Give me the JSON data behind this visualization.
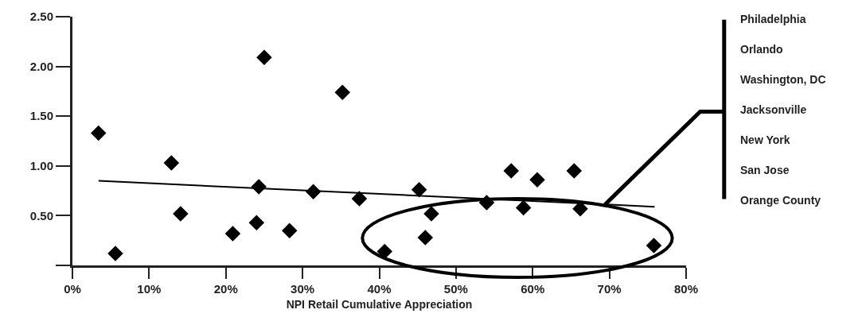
{
  "chart_data": {
    "type": "scatter",
    "xlabel": "NPI Retail Cumulative Appreciation",
    "series": [
      {
        "type": "scatter",
        "color": "#000000",
        "marker": "diamond",
        "x": [
          3.4,
          5.6,
          12.9,
          14.1,
          20.9,
          24.0,
          24.3,
          25.0,
          28.3,
          31.4,
          35.2,
          37.4,
          40.7,
          45.2,
          46.0,
          46.8,
          54.0,
          57.2,
          58.8,
          60.6,
          65.4,
          66.2,
          75.8
        ],
        "values": [
          1.33,
          0.12,
          1.03,
          0.52,
          0.32,
          0.43,
          0.79,
          2.09,
          0.35,
          0.74,
          1.74,
          0.67,
          0.14,
          0.76,
          0.28,
          0.52,
          0.63,
          0.95,
          0.58,
          0.86,
          0.95,
          0.57,
          0.2
        ]
      },
      {
        "type": "line",
        "color": "#000000",
        "marker": "none",
        "line_style": "solid",
        "x": [
          3.4,
          75.9
        ],
        "values": [
          0.85,
          0.59
        ]
      }
    ],
    "xlim": [
      0,
      80
    ],
    "xticks": [
      {
        "value": 0,
        "label": "0%"
      },
      {
        "value": 10,
        "label": "10%"
      },
      {
        "value": 20,
        "label": "20%"
      },
      {
        "value": 30,
        "label": "30%"
      },
      {
        "value": 40,
        "label": "40%"
      },
      {
        "value": 50,
        "label": "50%"
      },
      {
        "value": 60,
        "label": "60%"
      },
      {
        "value": 70,
        "label": "70%"
      },
      {
        "value": 80,
        "label": "80%"
      }
    ],
    "ylim": [
      0,
      2.5
    ],
    "yticks": [
      {
        "value": 0,
        "label": null
      },
      {
        "value": 0.5,
        "label": "0.50"
      },
      {
        "value": 1.0,
        "label": "1.00"
      },
      {
        "value": 1.5,
        "label": "1.50"
      },
      {
        "value": 2.0,
        "label": "2.00"
      },
      {
        "value": 2.5,
        "label": "2.50"
      }
    ],
    "annotations": [
      "Philadelphia",
      "Orlando",
      "Washington, DC",
      "Jacksonville",
      "New York",
      "San Jose",
      "Orange County"
    ]
  }
}
